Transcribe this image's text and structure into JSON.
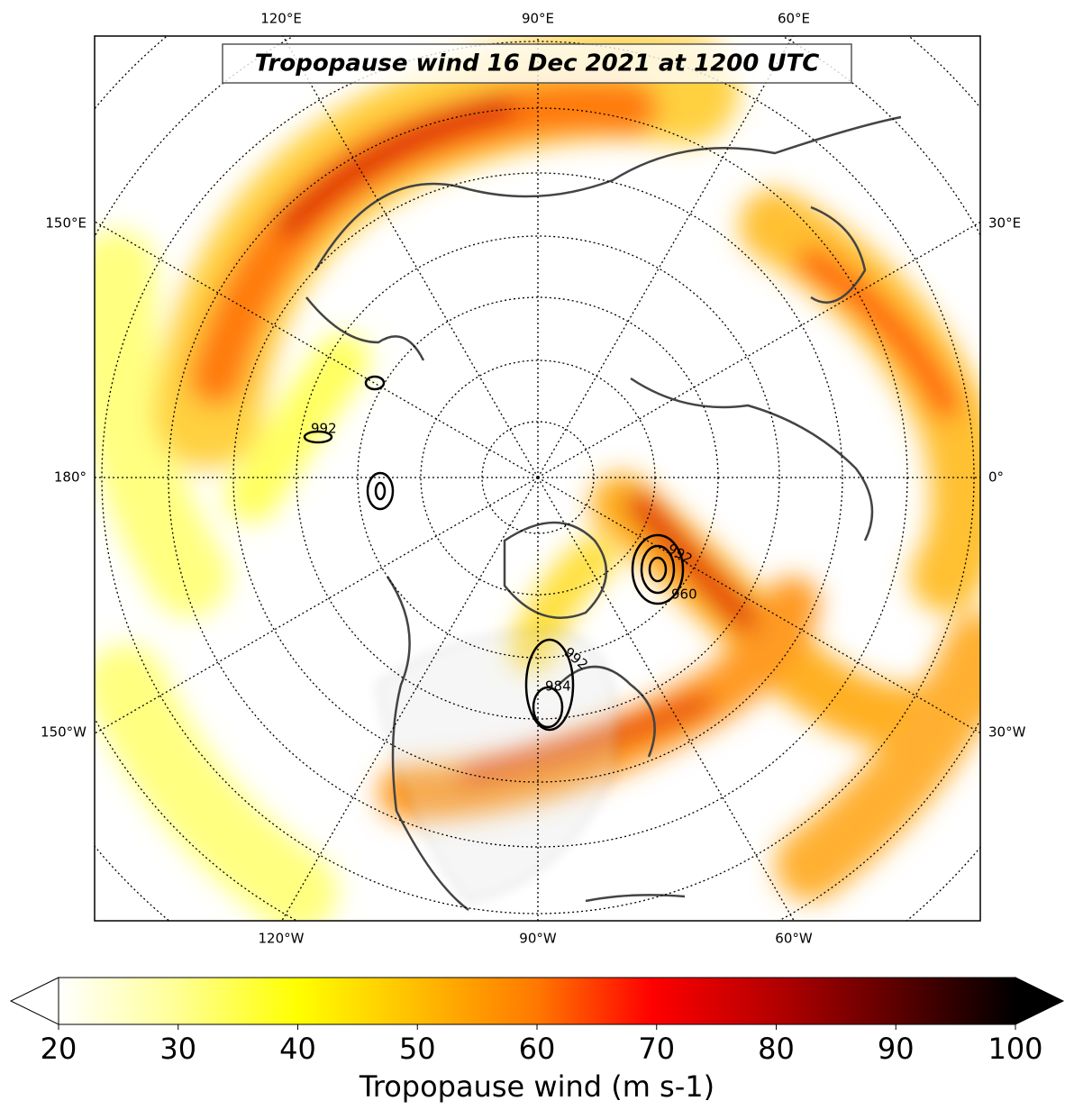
{
  "title": "Tropopause wind 16 Dec 2021 at 1200 UTC",
  "lon_labels_top": [
    "120°E",
    "90°E",
    "60°E"
  ],
  "lon_labels_bottom": [
    "120°W",
    "90°W",
    "60°W"
  ],
  "lon_labels_left": [
    "150°E",
    "180°",
    "150°W"
  ],
  "lon_labels_right": [
    "30°E",
    "0°",
    "30°W"
  ],
  "contour_labels": [
    "992",
    "992",
    "992",
    "984",
    "960"
  ],
  "colorbar": {
    "label": "Tropopause wind (m s-1)",
    "range": [
      20,
      100
    ],
    "ticks": [
      20,
      30,
      40,
      50,
      60,
      70,
      80,
      90,
      100
    ]
  }
}
